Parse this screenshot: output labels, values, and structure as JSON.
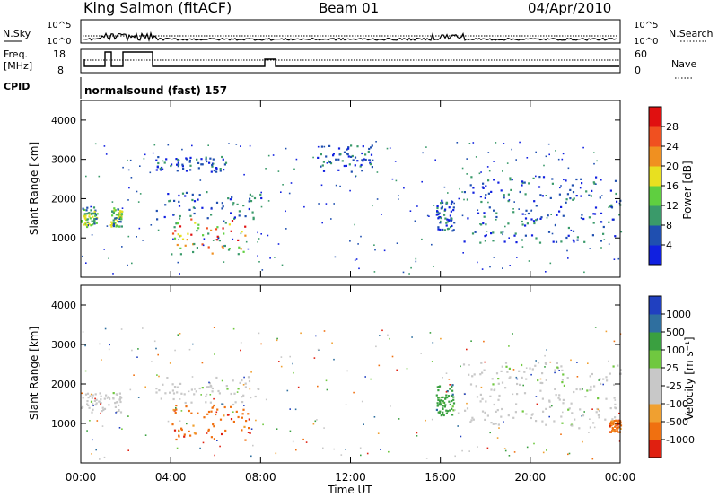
{
  "header": {
    "station": "King Salmon (fitACF)",
    "beam": "Beam 01",
    "date": "04/Apr/2010"
  },
  "top_panels": {
    "nsky_label": "N.Sky",
    "nsearch_label": "N.Search",
    "noise_ticks": [
      "10^5",
      "10^0"
    ],
    "freq_label_1": "Freq.",
    "freq_label_2": "[MHz]",
    "freq_ticks": [
      "18",
      "8"
    ],
    "nave_label": "Nave",
    "nave_ticks": [
      "60",
      "0"
    ],
    "cpid_label": "CPID",
    "cpid_text": "normalsound (fast) 157"
  },
  "chart_data": [
    {
      "type": "heatmap",
      "name": "power",
      "xlabel": "Time UT",
      "ylabel": "Slant Range [km]",
      "xlim": [
        0,
        24
      ],
      "ylim": [
        0,
        4500
      ],
      "x_ticks": [
        "00:00",
        "04:00",
        "08:00",
        "12:00",
        "16:00",
        "20:00",
        "00:00"
      ],
      "y_ticks": [
        "1000",
        "2000",
        "3000",
        "4000"
      ],
      "colorbar": {
        "label": "Power [dB]",
        "ticks": [
          "4",
          "8",
          "12",
          "16",
          "20",
          "24",
          "28"
        ],
        "colors": [
          "#1020e0",
          "#1f4fb0",
          "#3a9a6a",
          "#5fcf40",
          "#e8e020",
          "#f09020",
          "#f05020",
          "#e01010"
        ]
      },
      "regions": [
        {
          "t0": 0.0,
          "t1": 0.7,
          "r0": 1300,
          "r1": 1800,
          "level": "12-20 dB"
        },
        {
          "t0": 1.3,
          "t1": 1.8,
          "r0": 1300,
          "r1": 1800,
          "level": "8-16 dB"
        },
        {
          "t0": 3.3,
          "t1": 6.5,
          "r0": 2700,
          "r1": 3100,
          "level": "4-12 dB"
        },
        {
          "t0": 3.3,
          "t1": 8.0,
          "r0": 1500,
          "r1": 2200,
          "level": "8-20 dB"
        },
        {
          "t0": 4.0,
          "t1": 7.5,
          "r0": 600,
          "r1": 1500,
          "level": "12-28 dB"
        },
        {
          "t0": 10.5,
          "t1": 13.0,
          "r0": 2700,
          "r1": 3400,
          "level": "4-8 dB"
        },
        {
          "t0": 15.8,
          "t1": 16.6,
          "r0": 1200,
          "r1": 2000,
          "level": "8-16 dB"
        },
        {
          "t0": 17.0,
          "t1": 24.0,
          "r0": 900,
          "r1": 2600,
          "level": "4-12 dB"
        }
      ]
    },
    {
      "type": "heatmap",
      "name": "velocity",
      "xlabel": "Time UT",
      "ylabel": "Slant Range [km]",
      "xlim": [
        0,
        24
      ],
      "ylim": [
        0,
        4500
      ],
      "x_ticks": [
        "00:00",
        "04:00",
        "08:00",
        "12:00",
        "16:00",
        "20:00",
        "00:00"
      ],
      "y_ticks": [
        "1000",
        "2000",
        "3000",
        "4000"
      ],
      "colorbar": {
        "label": "Velocity  [m s⁻¹]",
        "ticks": [
          "1000",
          "500",
          "100",
          "25",
          "-25",
          "-100",
          "-500",
          "-1000"
        ],
        "colors": [
          "#2040c0",
          "#2f6f9f",
          "#3aa040",
          "#70c840",
          "#c8c8c8",
          "#c8c8c8",
          "#f0a030",
          "#f07010",
          "#e02010"
        ]
      },
      "regions": [
        {
          "t0": 0.0,
          "t1": 1.8,
          "r0": 1300,
          "r1": 1800,
          "level": "-25..25"
        },
        {
          "t0": 3.3,
          "t1": 8.0,
          "r0": 1500,
          "r1": 2200,
          "level": "-25..25"
        },
        {
          "t0": 4.0,
          "t1": 7.5,
          "r0": 600,
          "r1": 1500,
          "level": "-500..-100"
        },
        {
          "t0": 15.8,
          "t1": 16.6,
          "r0": 1200,
          "r1": 2000,
          "level": "100..500"
        },
        {
          "t0": 17.0,
          "t1": 24.0,
          "r0": 900,
          "r1": 2600,
          "level": "-25..25"
        },
        {
          "t0": 23.5,
          "t1": 24.0,
          "r0": 800,
          "r1": 1100,
          "level": "-500..-100"
        }
      ]
    }
  ]
}
